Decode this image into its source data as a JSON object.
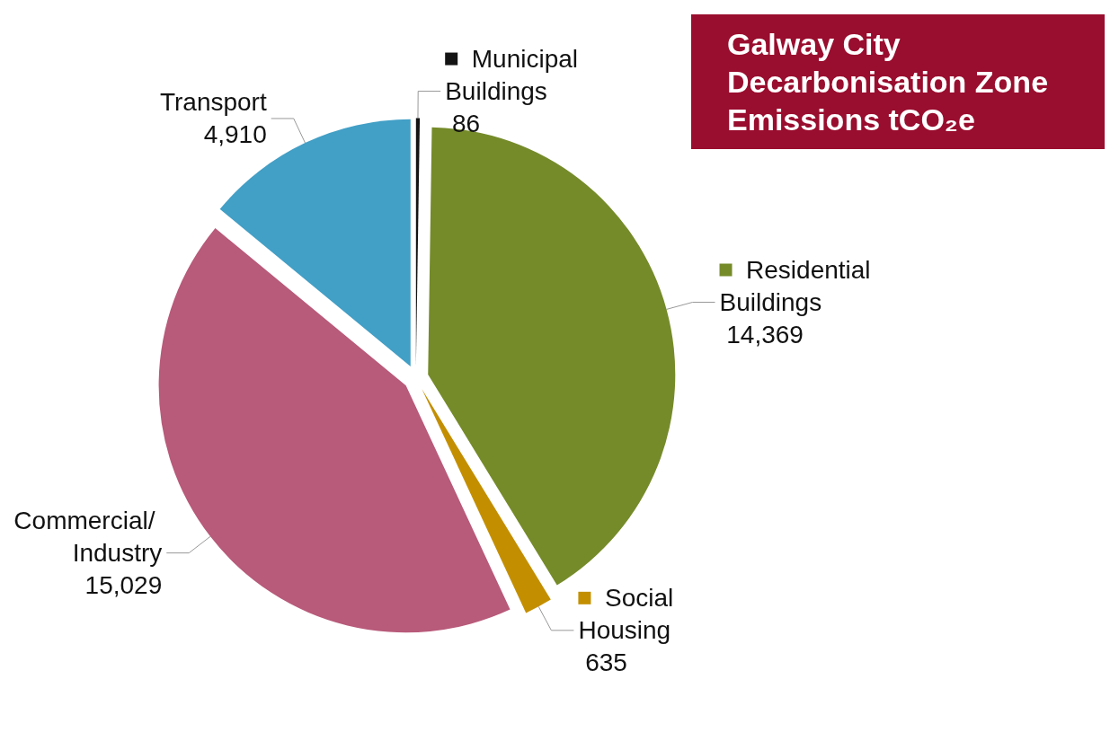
{
  "chart_data": {
    "type": "pie",
    "title": "Galway City Decarbonisation Zone Emissions tCO₂e",
    "categories": [
      "Municipal Buildings",
      "Residential Buildings",
      "Social Housing",
      "Commercial/ Industry",
      "Transport"
    ],
    "value_labels": [
      "86",
      "14,369",
      "635",
      "15,029",
      "4,910"
    ],
    "values": [
      86,
      14369,
      635,
      15029,
      4910
    ],
    "colors": [
      "#141414",
      "#758b2a",
      "#c38f00",
      "#b85a7a",
      "#429fc6"
    ],
    "data_labels": true,
    "legend": "right"
  }
}
